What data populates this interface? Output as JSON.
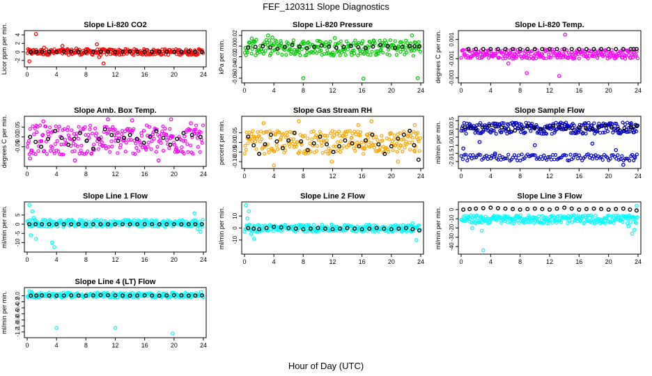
{
  "main_title": "FEF_120311  Slope Diagnostics",
  "x_axis_label": "Hour of Day (UTC)",
  "chart_data": [
    {
      "type": "scatter",
      "title": "Slope Li-820 CO2",
      "ylabel": "Licor ppm per min.",
      "color": "#ff0000",
      "xlim": [
        0,
        24
      ],
      "ylim": [
        -3,
        4.5
      ],
      "xticks": [
        "0",
        "4",
        "8",
        "12",
        "16",
        "20",
        "24"
      ],
      "yticks": [
        "-2",
        "0",
        "2",
        "4"
      ],
      "band": [
        -0.7,
        0.7
      ],
      "points": [
        [
          0.3,
          -2.2
        ],
        [
          1.2,
          4.2
        ],
        [
          2.3,
          1.0
        ],
        [
          4.8,
          1.4
        ],
        [
          9.5,
          1.8
        ],
        [
          10.4,
          -2.7
        ],
        [
          9.8,
          -1.2
        ],
        [
          6.7,
          0.8
        ]
      ],
      "black": [
        [
          0.5,
          0.0
        ],
        [
          2.0,
          0.1
        ],
        [
          4.0,
          0.0
        ],
        [
          6.0,
          0.1
        ],
        [
          8.0,
          0.0
        ],
        [
          10.0,
          0.1
        ],
        [
          12.0,
          0.0
        ],
        [
          14.0,
          0.1
        ],
        [
          16.0,
          0.0
        ],
        [
          18.0,
          0.1
        ],
        [
          20.0,
          0.0
        ],
        [
          22.0,
          0.1
        ],
        [
          23.8,
          0.0
        ]
      ]
    },
    {
      "type": "scatter",
      "title": "Slope Li-820 Pressure",
      "ylabel": "kPa per min.",
      "color": "#00cc00",
      "xlim": [
        0,
        24
      ],
      "ylim": [
        -0.065,
        0.025
      ],
      "xticks": [
        "0",
        "4",
        "8",
        "12",
        "16",
        "20",
        "24"
      ],
      "yticks": [
        "-0.06",
        "-0.04",
        "-0.02",
        "0.00",
        "0.02"
      ],
      "band": [
        -0.018,
        0.012
      ],
      "points": [
        [
          3.2,
          0.02
        ],
        [
          3.8,
          0.016
        ],
        [
          8.0,
          -0.06
        ],
        [
          16.2,
          -0.061
        ],
        [
          23.6,
          -0.06
        ],
        [
          22.8,
          0.02
        ],
        [
          1.0,
          0.014
        ],
        [
          12.3,
          0.015
        ]
      ],
      "black": [
        [
          0.5,
          -0.003
        ],
        [
          2.5,
          0.0
        ],
        [
          4.5,
          -0.005
        ],
        [
          6.5,
          0.002
        ],
        [
          8.5,
          -0.004
        ],
        [
          10.5,
          0.001
        ],
        [
          12.5,
          -0.003
        ],
        [
          14.5,
          0.0
        ],
        [
          16.5,
          -0.004
        ],
        [
          18.5,
          0.002
        ],
        [
          20.5,
          -0.003
        ],
        [
          22.5,
          0.0
        ],
        [
          23.8,
          -0.001
        ]
      ]
    },
    {
      "type": "scatter",
      "title": "Slope Li-820 Temp.",
      "ylabel": "degrees C per min.",
      "color": "#ff00ff",
      "xlim": [
        0,
        24
      ],
      "ylim": [
        -0.0033,
        0.0017
      ],
      "xticks": [
        "0",
        "4",
        "8",
        "12",
        "16",
        "20",
        "24"
      ],
      "yticks": [
        "-0.003",
        "-0.001",
        "0.001"
      ],
      "band": [
        -0.001,
        0.0
      ],
      "points": [
        [
          3.5,
          -0.0005
        ],
        [
          4.1,
          -0.0005
        ],
        [
          7.2,
          -0.0005
        ],
        [
          14.1,
          0.0015
        ],
        [
          13.3,
          -0.0028
        ],
        [
          8.9,
          -0.0025
        ],
        [
          18.5,
          -0.0005
        ],
        [
          6.4,
          -0.0015
        ]
      ],
      "black": [
        [
          1.0,
          0.0
        ],
        [
          3.0,
          0.0
        ],
        [
          5.0,
          0.0
        ],
        [
          7.0,
          0.0
        ],
        [
          9.0,
          0.0
        ],
        [
          11.0,
          0.0
        ],
        [
          13.0,
          0.0
        ],
        [
          15.0,
          0.0
        ],
        [
          17.0,
          0.0
        ],
        [
          19.0,
          0.0
        ],
        [
          21.0,
          0.0
        ],
        [
          23.0,
          0.0
        ],
        [
          23.8,
          0.0
        ]
      ]
    },
    {
      "type": "scatter",
      "title": "Slope Amb. Box Temp.",
      "ylabel": "degrees C per min.",
      "color": "#ff00ff",
      "xlim": [
        0,
        24
      ],
      "ylim": [
        -0.14,
        0.095
      ],
      "xticks": [
        "0",
        "4",
        "8",
        "12",
        "16",
        "20",
        "24"
      ],
      "yticks": [
        "-0.05",
        "0.00",
        "0.05"
      ],
      "band": [
        -0.09,
        0.06
      ],
      "points": [
        [
          0.4,
          -0.11
        ],
        [
          2.2,
          0.08
        ],
        [
          6.5,
          -0.12
        ],
        [
          11.0,
          0.09
        ],
        [
          14.3,
          0.085
        ],
        [
          19.6,
          0.09
        ],
        [
          22.3,
          0.07
        ],
        [
          17.9,
          -0.12
        ]
      ],
      "black": [
        [
          0.4,
          0.0
        ],
        [
          1.9,
          -0.05
        ],
        [
          3.8,
          0.03
        ],
        [
          5.6,
          -0.04
        ],
        [
          7.2,
          0.02
        ],
        [
          9.0,
          -0.06
        ],
        [
          10.6,
          0.04
        ],
        [
          12.4,
          -0.02
        ],
        [
          14.0,
          0.01
        ],
        [
          15.9,
          -0.03
        ],
        [
          17.6,
          0.03
        ],
        [
          19.5,
          -0.04
        ],
        [
          21.3,
          0.02
        ],
        [
          23.6,
          0.0
        ]
      ]
    },
    {
      "type": "scatter",
      "title": "Slope Gas Stream RH",
      "ylabel": "percent per min.",
      "color": "#ffa500",
      "xlim": [
        0,
        24
      ],
      "ylim": [
        -0.125,
        0.125
      ],
      "xticks": [
        "0",
        "4",
        "8",
        "12",
        "16",
        "20",
        "24"
      ],
      "yticks": [
        "-0.10",
        "-0.05",
        "0.00",
        "0.05"
      ],
      "band": [
        -0.06,
        0.06
      ],
      "points": [
        [
          4.0,
          -0.12
        ],
        [
          2.6,
          0.1
        ],
        [
          7.4,
          0.11
        ],
        [
          11.9,
          -0.1
        ],
        [
          17.3,
          0.11
        ],
        [
          20.9,
          -0.1
        ],
        [
          23.2,
          0.09
        ],
        [
          15.5,
          0.09
        ]
      ],
      "black": [
        [
          0.5,
          0.03
        ],
        [
          2.0,
          -0.06
        ],
        [
          3.6,
          0.04
        ],
        [
          5.2,
          -0.03
        ],
        [
          6.8,
          0.05
        ],
        [
          8.6,
          -0.04
        ],
        [
          10.3,
          0.03
        ],
        [
          12.1,
          -0.05
        ],
        [
          13.7,
          0.01
        ],
        [
          15.6,
          -0.02
        ],
        [
          17.4,
          0.04
        ],
        [
          19.1,
          -0.06
        ],
        [
          20.9,
          0.02
        ],
        [
          22.5,
          0.06
        ],
        [
          23.7,
          -0.09
        ]
      ]
    },
    {
      "type": "scatter",
      "title": "Slope Sample Flow",
      "ylabel": "ml/min per min.",
      "color": "#0000cc",
      "xlim": [
        0,
        24
      ],
      "ylim": [
        -2.3,
        0.65
      ],
      "xticks": [
        "0",
        "4",
        "8",
        "12",
        "16",
        "20",
        "24"
      ],
      "yticks": [
        "-2.0",
        "-1.5",
        "-1.0",
        "-0.5",
        "0.0",
        "0.5"
      ],
      "band": [
        -0.3,
        0.4
      ],
      "band2": [
        -1.95,
        -1.55
      ],
      "points": [
        [
          0.3,
          -1.2
        ],
        [
          4.6,
          -1.5
        ],
        [
          10.0,
          -1.0
        ],
        [
          17.8,
          -0.9
        ],
        [
          21.0,
          -1.3
        ],
        [
          22.0,
          -2.2
        ],
        [
          23.5,
          -1.7
        ],
        [
          2.5,
          -0.8
        ]
      ],
      "black": [
        [
          0.5,
          0.1
        ],
        [
          2.0,
          0.0
        ],
        [
          3.8,
          0.2
        ],
        [
          5.5,
          0.1
        ],
        [
          7.3,
          -0.1
        ],
        [
          9.0,
          0.2
        ],
        [
          10.8,
          0.0
        ],
        [
          12.5,
          0.2
        ],
        [
          14.2,
          0.0
        ],
        [
          16.0,
          0.1
        ],
        [
          17.8,
          0.0
        ],
        [
          19.5,
          0.2
        ],
        [
          21.3,
          0.0
        ],
        [
          23.0,
          0.1
        ],
        [
          23.8,
          0.2
        ]
      ]
    },
    {
      "type": "scatter",
      "title": "Slope Line 1 Flow",
      "ylabel": "ml/min per min.",
      "color": "#00ffff",
      "xlim": [
        0,
        24
      ],
      "ylim": [
        -14,
        11
      ],
      "xticks": [
        "0",
        "4",
        "8",
        "12",
        "16",
        "20",
        "24"
      ],
      "yticks": [
        "-10",
        "-5",
        "0",
        "5"
      ],
      "band": [
        -1.5,
        2.5
      ],
      "points": [
        [
          0.3,
          10.5
        ],
        [
          0.7,
          7.0
        ],
        [
          0.5,
          -6.0
        ],
        [
          1.2,
          -8.0
        ],
        [
          3.4,
          -10.0
        ],
        [
          3.7,
          -12.5
        ],
        [
          22.8,
          6.0
        ],
        [
          23.6,
          -4.0
        ],
        [
          23.2,
          -2.5
        ],
        [
          0.9,
          3.5
        ]
      ],
      "black": [
        [
          0.3,
          0.0
        ],
        [
          2.0,
          0.0
        ],
        [
          4.0,
          0.0
        ],
        [
          6.0,
          0.0
        ],
        [
          8.0,
          0.0
        ],
        [
          10.0,
          0.0
        ],
        [
          12.0,
          0.0
        ],
        [
          14.0,
          0.0
        ],
        [
          16.0,
          0.0
        ],
        [
          18.0,
          0.0
        ],
        [
          20.0,
          0.0
        ],
        [
          22.0,
          0.0
        ],
        [
          23.8,
          0.0
        ]
      ]
    },
    {
      "type": "scatter",
      "title": "Slope Line 2 Flow",
      "ylabel": "ml/min per min.",
      "color": "#00ffff",
      "xlim": [
        0,
        24
      ],
      "ylim": [
        -20,
        20
      ],
      "xticks": [
        "0",
        "4",
        "8",
        "12",
        "16",
        "20",
        "24"
      ],
      "yticks": [
        "-10",
        "0",
        "10"
      ],
      "band": [
        -3,
        3
      ],
      "points": [
        [
          0.2,
          19.0
        ],
        [
          0.6,
          14.0
        ],
        [
          1.3,
          -9.0
        ],
        [
          0.9,
          -5.0
        ],
        [
          1.8,
          -3.0
        ],
        [
          23.4,
          -10.0
        ],
        [
          22.9,
          4.0
        ],
        [
          0.4,
          8.0
        ]
      ],
      "black": [
        [
          0.5,
          0.0
        ],
        [
          2.0,
          -1.0
        ],
        [
          4.0,
          1.0
        ],
        [
          6.0,
          0.0
        ],
        [
          8.0,
          -1.0
        ],
        [
          10.0,
          0.0
        ],
        [
          12.0,
          -1.0
        ],
        [
          14.0,
          0.0
        ],
        [
          16.0,
          -1.0
        ],
        [
          18.0,
          0.0
        ],
        [
          20.0,
          -1.0
        ],
        [
          22.0,
          0.0
        ],
        [
          23.8,
          -2.0
        ]
      ]
    },
    {
      "type": "scatter",
      "title": "Slope Line 3 Flow",
      "ylabel": "ml/min per min.",
      "color": "#00ffff",
      "xlim": [
        0,
        24
      ],
      "ylim": [
        -46,
        6
      ],
      "xticks": [
        "0",
        "4",
        "8",
        "12",
        "16",
        "20",
        "24"
      ],
      "yticks": [
        "-40",
        "-30",
        "-20",
        "-10",
        "0"
      ],
      "band": [
        -15,
        -6
      ],
      "points": [
        [
          3.0,
          -44.0
        ],
        [
          2.8,
          -23.0
        ],
        [
          23.2,
          -26.0
        ],
        [
          23.5,
          -22.0
        ],
        [
          1.5,
          -20.0
        ],
        [
          22.7,
          -18.0
        ],
        [
          0.5,
          -12.0
        ],
        [
          23.8,
          4.0
        ]
      ],
      "black": [
        [
          0.3,
          0.0
        ],
        [
          2.0,
          1.0
        ],
        [
          4.0,
          2.0
        ],
        [
          6.0,
          1.0
        ],
        [
          8.0,
          0.0
        ],
        [
          10.0,
          1.0
        ],
        [
          12.0,
          0.0
        ],
        [
          14.0,
          2.0
        ],
        [
          16.0,
          0.0
        ],
        [
          18.0,
          1.0
        ],
        [
          20.0,
          0.0
        ],
        [
          22.0,
          1.0
        ],
        [
          23.8,
          -1.0
        ]
      ]
    },
    {
      "type": "scatter",
      "title": "Slope Line 4 (LT) Flow",
      "ylabel": "ml/min per min.",
      "color": "#00ffff",
      "xlim": [
        0,
        24
      ],
      "ylim": [
        -1.32,
        0.2
      ],
      "xticks": [
        "0",
        "4",
        "8",
        "12",
        "16",
        "20",
        "24"
      ],
      "yticks": [
        "-1.2",
        "-1.0",
        "-0.8",
        "-0.6",
        "-0.4",
        "-0.2",
        "0.0"
      ],
      "band": [
        -0.06,
        0.1
      ],
      "points": [
        [
          0.3,
          0.15
        ],
        [
          4.0,
          -1.07
        ],
        [
          12.0,
          -1.07
        ],
        [
          19.8,
          -1.25
        ],
        [
          0.6,
          0.12
        ],
        [
          23.7,
          0.12
        ]
      ],
      "black": [
        [
          0.5,
          0.0
        ],
        [
          2.0,
          0.01
        ],
        [
          4.0,
          0.0
        ],
        [
          6.0,
          0.01
        ],
        [
          8.0,
          0.0
        ],
        [
          10.0,
          0.02
        ],
        [
          12.0,
          0.01
        ],
        [
          14.0,
          0.0
        ],
        [
          16.0,
          0.01
        ],
        [
          18.0,
          0.0
        ],
        [
          20.0,
          0.02
        ],
        [
          22.0,
          0.0
        ],
        [
          23.8,
          0.01
        ]
      ]
    }
  ]
}
